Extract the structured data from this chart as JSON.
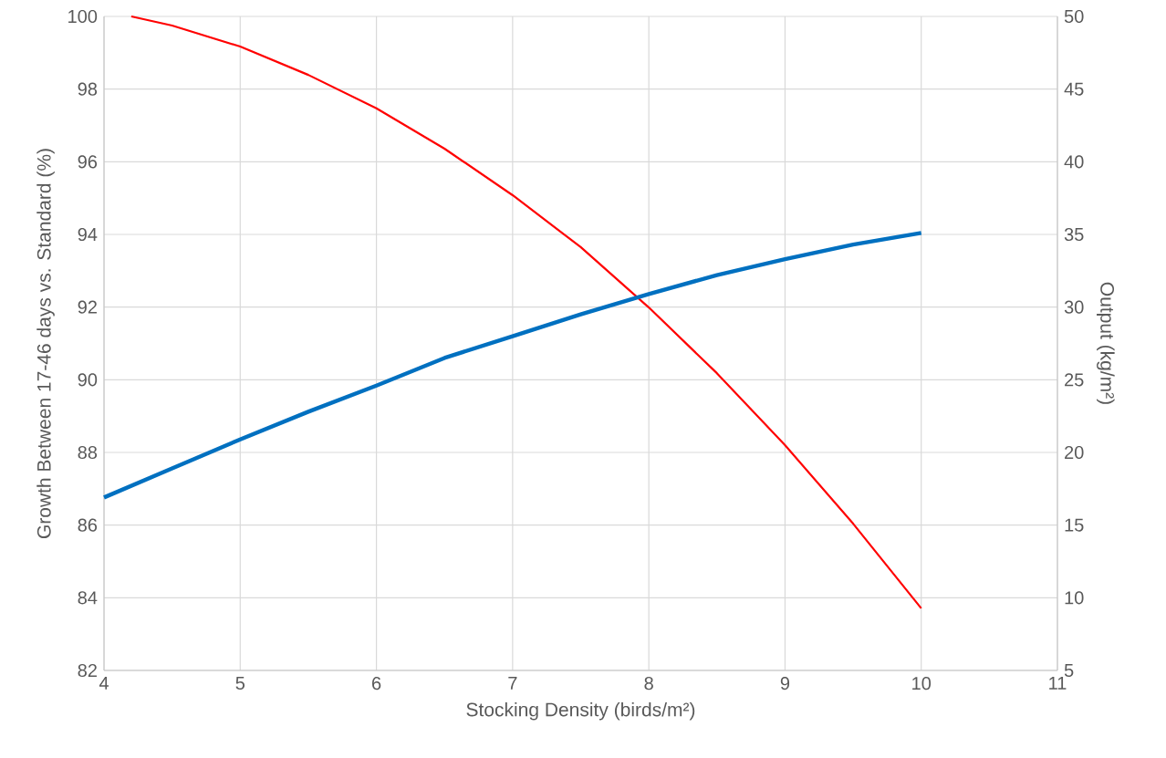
{
  "chart_data": {
    "type": "line",
    "xlabel": "Stocking Density (birds/m²)",
    "ylabel": "Growth Between 17-46 days vs. Standard (%)",
    "y2label": "Output (kg/m²)",
    "xlim": [
      4,
      11
    ],
    "xticks": [
      4,
      5,
      6,
      7,
      8,
      9,
      10,
      11
    ],
    "ylim": [
      82,
      100
    ],
    "yticks": [
      82,
      84,
      86,
      88,
      90,
      92,
      94,
      96,
      98,
      100
    ],
    "y2lim": [
      5,
      50
    ],
    "y2ticks": [
      5,
      10,
      15,
      20,
      25,
      30,
      35,
      40,
      45,
      50
    ],
    "grid": true,
    "series": [
      {
        "axis": "y",
        "color": "#ff0000",
        "x": [
          4.2,
          4.5,
          5,
          5.5,
          6,
          6.5,
          7,
          7.5,
          8,
          8.5,
          9,
          9.5,
          10
        ],
        "values": [
          100,
          99.75,
          99.17,
          98.39,
          97.47,
          96.36,
          95.08,
          93.65,
          91.99,
          90.18,
          88.2,
          86.04,
          83.71
        ]
      },
      {
        "axis": "y2",
        "color": "#0070c0",
        "x": [
          4,
          4.5,
          5,
          5.5,
          6,
          6.5,
          7,
          7.5,
          8,
          8.5,
          9,
          9.5,
          10
        ],
        "values": [
          16.9,
          18.9,
          20.9,
          22.8,
          24.6,
          26.5,
          28.0,
          29.5,
          30.9,
          32.2,
          33.3,
          34.3,
          35.1
        ]
      }
    ]
  }
}
